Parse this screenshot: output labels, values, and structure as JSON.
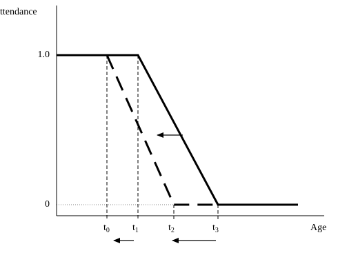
{
  "y_axis": {
    "label": "ttendance",
    "ticks": [
      "1.0",
      "0"
    ]
  },
  "x_axis": {
    "label": "Age",
    "ticks": [
      {
        "base": "t",
        "sub": "0"
      },
      {
        "base": "t",
        "sub": "1"
      },
      {
        "base": "t",
        "sub": "2"
      },
      {
        "base": "t",
        "sub": "3"
      }
    ]
  }
}
